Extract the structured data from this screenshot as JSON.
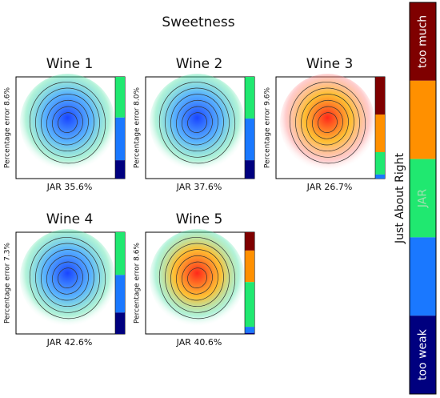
{
  "chart_data": {
    "type": "panels",
    "title": "Sweetness",
    "panels": [
      {
        "title": "Wine 1",
        "error_label": "Percentage error 8.6%",
        "jar_label": "JAR 35.6%",
        "heat": [
          "#0030ff",
          "#30a0ff",
          "#40e0a0"
        ],
        "segments": [
          0,
          0,
          40,
          42,
          18
        ]
      },
      {
        "title": "Wine 2",
        "error_label": "Percentage error 8.0%",
        "jar_label": "JAR 37.6%",
        "heat": [
          "#0030ff",
          "#30a0ff",
          "#40e0a0"
        ],
        "segments": [
          0,
          0,
          41,
          41,
          18
        ]
      },
      {
        "title": "Wine 3",
        "error_label": "Percentage error 9.6%",
        "jar_label": "JAR 26.7%",
        "heat": [
          "#ff1000",
          "#ffb000",
          "#ff8080"
        ],
        "segments": [
          37,
          37,
          22,
          4,
          0
        ]
      },
      {
        "title": "Wine 4",
        "error_label": "Percentage error 7.3%",
        "jar_label": "JAR 42.6%",
        "heat": [
          "#0030ff",
          "#30a0ff",
          "#40e0a0"
        ],
        "segments": [
          0,
          0,
          42,
          37,
          21
        ]
      },
      {
        "title": "Wine 5",
        "error_label": "Percentage error 8.6%",
        "jar_label": "JAR 40.6%",
        "heat": [
          "#ff1000",
          "#ffb000",
          "#40e0a0"
        ],
        "segments": [
          18,
          31,
          44,
          6,
          1
        ]
      }
    ],
    "segment_colors": [
      "#7f0000",
      "#ff9000",
      "#20e870",
      "#1a78ff",
      "#00007f"
    ],
    "colorbar": {
      "label": "Just About Right",
      "tick_labels": [
        "too much",
        "JAR",
        "too weak"
      ]
    }
  }
}
